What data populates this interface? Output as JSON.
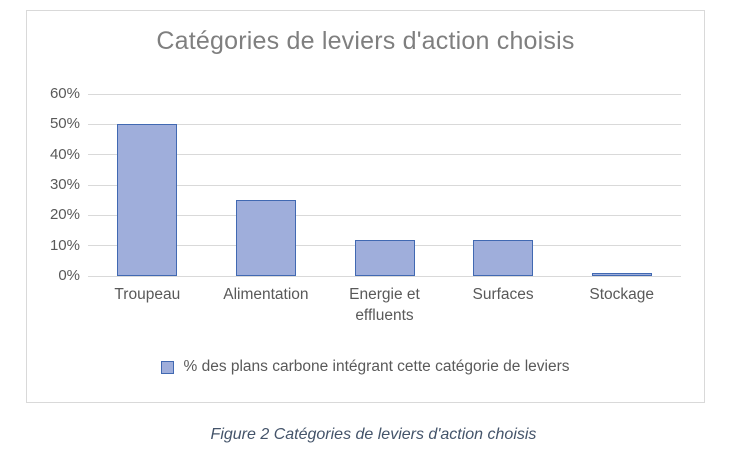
{
  "figure": {
    "caption": "Figure 2 Catégories de leviers d'action choisis"
  },
  "chart_data": {
    "type": "bar",
    "title": "Catégories de leviers d'action choisis",
    "categories": [
      "Troupeau",
      "Alimentation",
      "Energie et effluents",
      "Surfaces",
      "Stockage"
    ],
    "values": [
      50,
      25,
      12,
      12,
      1
    ],
    "unit": "%",
    "xlabel": "",
    "ylabel": "",
    "ylim": [
      0,
      60
    ],
    "ytick_step": 10,
    "ytick_labels": [
      "0%",
      "10%",
      "20%",
      "30%",
      "40%",
      "50%",
      "60%"
    ],
    "grid": true,
    "legend_position": "bottom",
    "legend": [
      "% des plans carbone intégrant cette catégorie de leviers"
    ],
    "colors": {
      "bar_fill": "#9faedb",
      "bar_border": "#4169b2",
      "title": "#7f7f7f",
      "axis_text": "#595959",
      "gridline": "#d9d9d9",
      "chart_border": "#d9d9d9",
      "caption": "#44546a"
    }
  }
}
